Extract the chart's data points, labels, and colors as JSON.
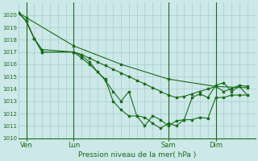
{
  "background_color": "#cce8e8",
  "grid_color": "#aacccc",
  "line_color": "#1a6b1a",
  "title": "Pression niveau de la mer( hPa )",
  "ylim": [
    1010,
    1021
  ],
  "yticks": [
    1010,
    1011,
    1012,
    1013,
    1014,
    1015,
    1016,
    1017,
    1018,
    1019,
    1020
  ],
  "xlim": [
    0,
    30
  ],
  "xtick_labels": [
    "Ven",
    "Lun",
    "Sam",
    "Dim"
  ],
  "xtick_positions": [
    1,
    7,
    19,
    25
  ],
  "vline_positions": [
    1,
    7,
    19,
    25
  ],
  "num_x_grid": 30,
  "series": [
    {
      "x": [
        0,
        1,
        7,
        13,
        19,
        25,
        29
      ],
      "y": [
        1020.2,
        1019.8,
        1017.5,
        1016.0,
        1014.8,
        1014.2,
        1014.1
      ]
    },
    {
      "x": [
        0,
        1,
        2,
        3,
        7,
        8,
        9,
        10,
        11,
        12,
        13,
        14,
        15,
        16,
        17,
        18,
        19,
        20,
        21,
        22,
        23,
        24,
        25,
        26,
        27,
        28,
        29
      ],
      "y": [
        1020.2,
        1019.5,
        1018.1,
        1017.0,
        1017.0,
        1016.8,
        1016.5,
        1016.2,
        1015.9,
        1015.6,
        1015.3,
        1015.0,
        1014.7,
        1014.4,
        1014.1,
        1013.8,
        1013.5,
        1013.3,
        1013.4,
        1013.6,
        1013.8,
        1014.0,
        1014.2,
        1013.8,
        1014.0,
        1014.3,
        1014.2
      ]
    },
    {
      "x": [
        0,
        1,
        2,
        3,
        7,
        8,
        9,
        10,
        11,
        12,
        13,
        14,
        15,
        16,
        17,
        18,
        19,
        20,
        21,
        22,
        23,
        24,
        25,
        26,
        27,
        28,
        29
      ],
      "y": [
        1020.2,
        1019.5,
        1018.1,
        1017.0,
        1017.0,
        1016.5,
        1016.0,
        1015.4,
        1014.8,
        1013.0,
        1012.3,
        1011.8,
        1011.8,
        1011.7,
        1011.2,
        1010.8,
        1011.2,
        1011.0,
        1011.5,
        1011.5,
        1011.7,
        1011.6,
        1013.3,
        1013.3,
        1013.5,
        1013.5,
        1013.5
      ]
    },
    {
      "x": [
        0,
        1,
        2,
        3,
        7,
        8,
        9,
        10,
        11,
        12,
        13,
        14,
        15,
        16,
        17,
        18,
        19,
        20,
        21,
        22,
        23,
        24,
        25,
        26,
        27,
        28,
        29
      ],
      "y": [
        1020.2,
        1019.5,
        1018.1,
        1017.2,
        1017.0,
        1016.7,
        1016.2,
        1015.4,
        1014.7,
        1013.8,
        1013.0,
        1013.8,
        1011.8,
        1011.0,
        1011.8,
        1011.5,
        1011.0,
        1011.4,
        1011.5,
        1013.3,
        1013.6,
        1013.3,
        1014.3,
        1014.5,
        1013.8,
        1014.2,
        1013.5
      ]
    }
  ]
}
